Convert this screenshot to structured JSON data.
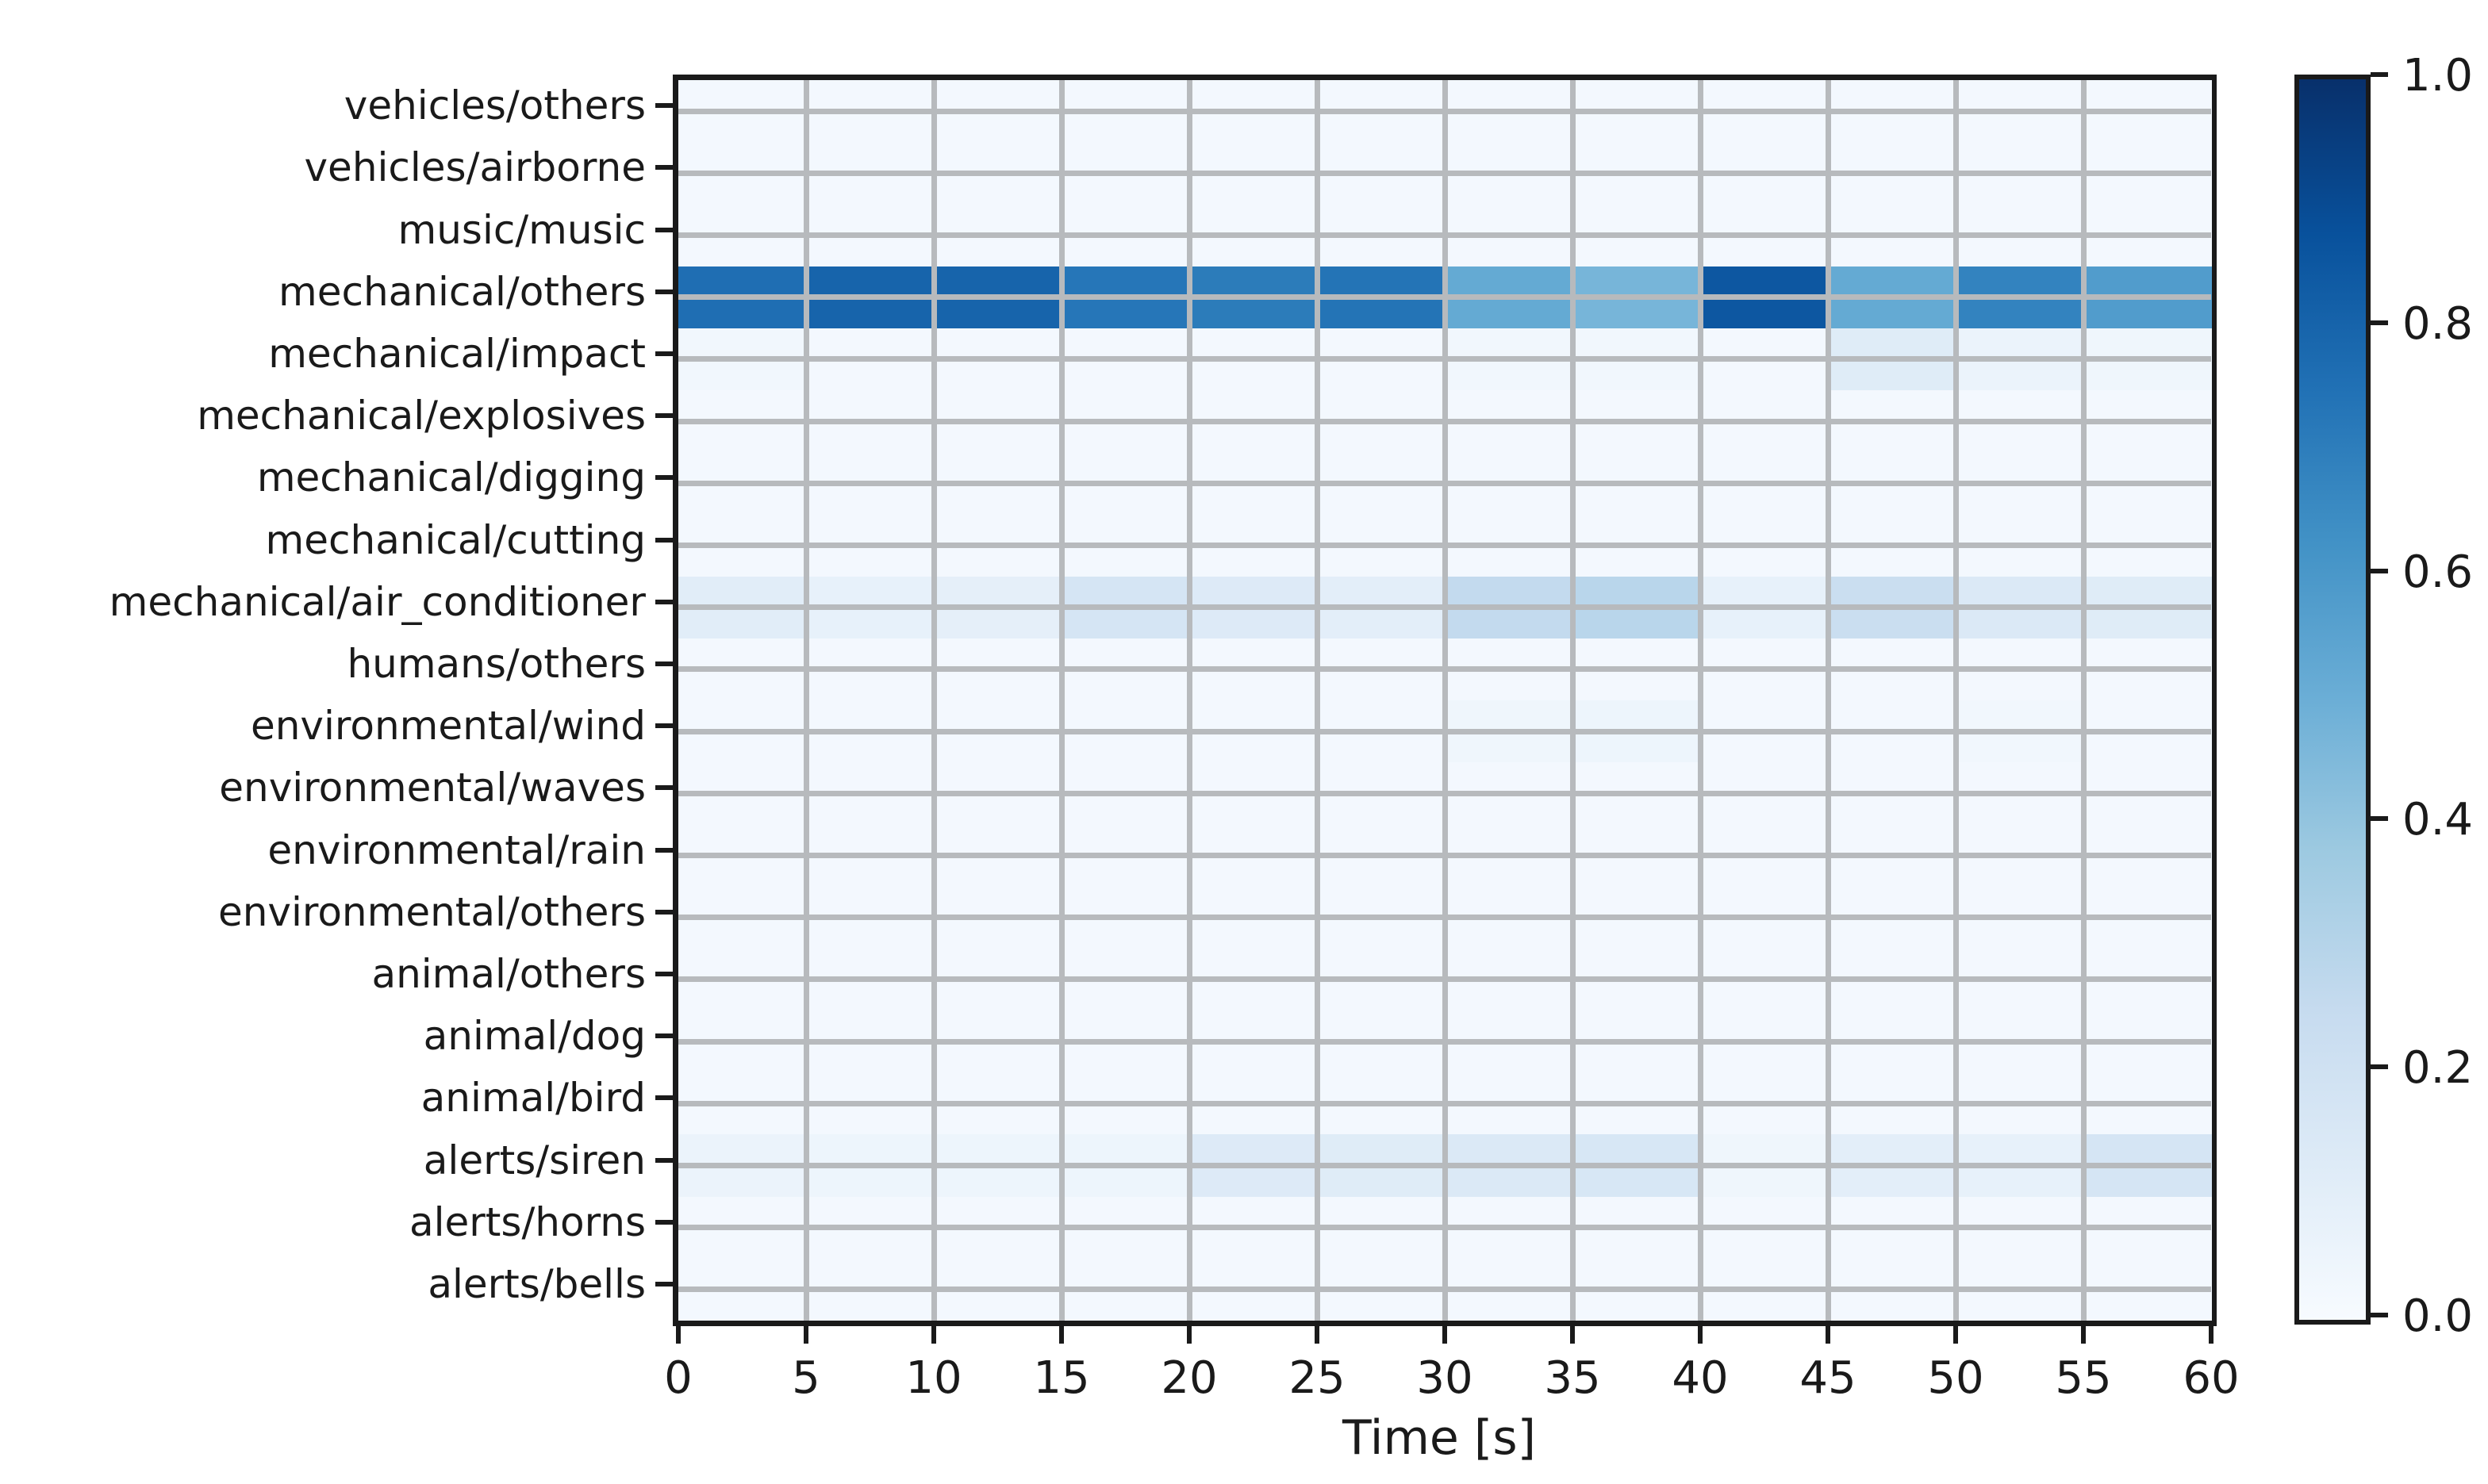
{
  "chart_data": {
    "type": "heatmap",
    "title": "",
    "xlabel": "Time [s]",
    "ylabel": "",
    "x_ticks": [
      0,
      5,
      10,
      15,
      20,
      25,
      30,
      35,
      40,
      45,
      50,
      55,
      60
    ],
    "x_range": [
      0,
      60
    ],
    "column_width_s": 5,
    "grid": true,
    "colormap": "Blues",
    "value_range": [
      0.0,
      1.0
    ],
    "colorbar_ticks": [
      "1.0",
      "0.8",
      "0.6",
      "0.4",
      "0.2",
      "0.0"
    ],
    "categories": [
      "vehicles/others",
      "vehicles/airborne",
      "music/music",
      "mechanical/others",
      "mechanical/impact",
      "mechanical/explosives",
      "mechanical/digging",
      "mechanical/cutting",
      "mechanical/air_conditioner",
      "humans/others",
      "environmental/wind",
      "environmental/waves",
      "environmental/rain",
      "environmental/others",
      "animal/others",
      "animal/dog",
      "animal/bird",
      "alerts/siren",
      "alerts/horns",
      "alerts/bells"
    ],
    "values": [
      [
        0.02,
        0.02,
        0.02,
        0.02,
        0.02,
        0.02,
        0.02,
        0.02,
        0.02,
        0.02,
        0.02,
        0.02
      ],
      [
        0.02,
        0.02,
        0.02,
        0.02,
        0.02,
        0.02,
        0.02,
        0.02,
        0.02,
        0.02,
        0.02,
        0.02
      ],
      [
        0.02,
        0.02,
        0.02,
        0.02,
        0.02,
        0.02,
        0.02,
        0.02,
        0.02,
        0.02,
        0.02,
        0.02
      ],
      [
        0.76,
        0.8,
        0.8,
        0.73,
        0.71,
        0.74,
        0.52,
        0.47,
        0.85,
        0.52,
        0.68,
        0.58
      ],
      [
        0.03,
        0.02,
        0.02,
        0.02,
        0.02,
        0.02,
        0.03,
        0.03,
        0.02,
        0.12,
        0.06,
        0.04
      ],
      [
        0.02,
        0.02,
        0.02,
        0.02,
        0.02,
        0.02,
        0.02,
        0.02,
        0.02,
        0.02,
        0.02,
        0.02
      ],
      [
        0.02,
        0.02,
        0.02,
        0.02,
        0.02,
        0.02,
        0.02,
        0.02,
        0.02,
        0.02,
        0.02,
        0.02
      ],
      [
        0.02,
        0.02,
        0.02,
        0.02,
        0.02,
        0.02,
        0.02,
        0.02,
        0.02,
        0.02,
        0.02,
        0.02
      ],
      [
        0.11,
        0.08,
        0.09,
        0.17,
        0.13,
        0.1,
        0.26,
        0.29,
        0.08,
        0.23,
        0.14,
        0.12
      ],
      [
        0.02,
        0.02,
        0.02,
        0.02,
        0.02,
        0.02,
        0.02,
        0.02,
        0.02,
        0.02,
        0.02,
        0.02
      ],
      [
        0.02,
        0.02,
        0.02,
        0.02,
        0.02,
        0.02,
        0.04,
        0.05,
        0.02,
        0.02,
        0.03,
        0.02
      ],
      [
        0.02,
        0.02,
        0.02,
        0.02,
        0.02,
        0.02,
        0.02,
        0.02,
        0.02,
        0.02,
        0.02,
        0.02
      ],
      [
        0.02,
        0.02,
        0.02,
        0.02,
        0.02,
        0.02,
        0.02,
        0.02,
        0.02,
        0.02,
        0.02,
        0.02
      ],
      [
        0.02,
        0.02,
        0.02,
        0.02,
        0.02,
        0.02,
        0.02,
        0.02,
        0.02,
        0.02,
        0.02,
        0.02
      ],
      [
        0.02,
        0.02,
        0.02,
        0.02,
        0.02,
        0.02,
        0.02,
        0.02,
        0.02,
        0.02,
        0.02,
        0.02
      ],
      [
        0.02,
        0.02,
        0.02,
        0.02,
        0.02,
        0.02,
        0.02,
        0.02,
        0.02,
        0.02,
        0.02,
        0.02
      ],
      [
        0.02,
        0.02,
        0.02,
        0.02,
        0.02,
        0.02,
        0.02,
        0.02,
        0.02,
        0.02,
        0.02,
        0.02
      ],
      [
        0.06,
        0.05,
        0.05,
        0.05,
        0.13,
        0.12,
        0.14,
        0.16,
        0.04,
        0.1,
        0.08,
        0.17
      ],
      [
        0.02,
        0.02,
        0.02,
        0.02,
        0.02,
        0.02,
        0.02,
        0.02,
        0.02,
        0.02,
        0.02,
        0.02
      ],
      [
        0.02,
        0.02,
        0.02,
        0.02,
        0.02,
        0.02,
        0.02,
        0.02,
        0.02,
        0.02,
        0.02,
        0.02
      ]
    ]
  },
  "style": {
    "gridline_color": "#b7babd",
    "spine_color": "#1a1a1a",
    "text_color": "#1a1a1a"
  }
}
